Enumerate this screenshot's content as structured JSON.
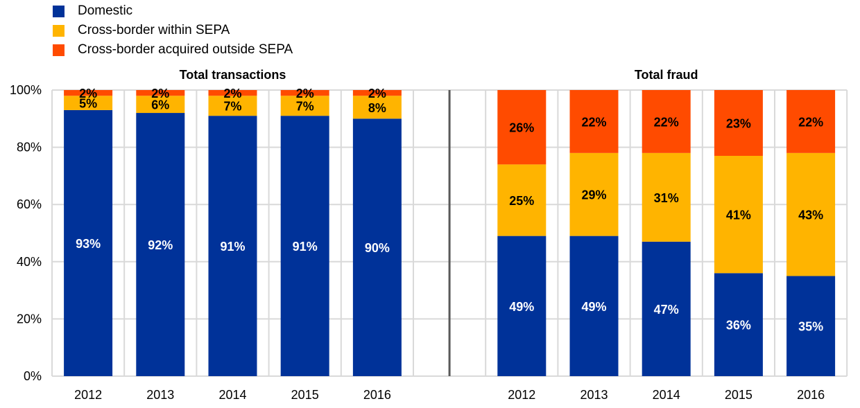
{
  "chart_data": {
    "type": "bar",
    "stacked": true,
    "percent_stacked": true,
    "legend": {
      "position": "top-left",
      "entries": [
        {
          "name": "Domestic",
          "color": "#003299"
        },
        {
          "name": "Cross-border within SEPA",
          "color": "#FFB400"
        },
        {
          "name": "Cross-border acquired outside SEPA",
          "color": "#FF4B00"
        }
      ]
    },
    "yaxis": {
      "ylim": [
        0,
        100
      ],
      "ticks": [
        "0%",
        "20%",
        "40%",
        "60%",
        "80%",
        "100%"
      ],
      "tick_values": [
        0,
        20,
        40,
        60,
        80,
        100
      ],
      "grid": true
    },
    "panels": [
      {
        "title": "Total transactions",
        "categories": [
          "2012",
          "2013",
          "2014",
          "2015",
          "2016"
        ],
        "series": [
          {
            "name": "Domestic",
            "values": [
              93,
              92,
              91,
              91,
              90
            ]
          },
          {
            "name": "Cross-border within SEPA",
            "values": [
              5,
              6,
              7,
              7,
              8
            ]
          },
          {
            "name": "Cross-border acquired outside SEPA",
            "values": [
              2,
              2,
              2,
              2,
              2
            ]
          }
        ]
      },
      {
        "title": "Total fraud",
        "categories": [
          "2012",
          "2013",
          "2014",
          "2015",
          "2016"
        ],
        "series": [
          {
            "name": "Domestic",
            "values": [
              49,
              49,
              47,
              36,
              35
            ]
          },
          {
            "name": "Cross-border within SEPA",
            "values": [
              25,
              29,
              31,
              41,
              43
            ]
          },
          {
            "name": "Cross-border acquired outside SEPA",
            "values": [
              26,
              22,
              22,
              23,
              22
            ]
          }
        ]
      }
    ],
    "label_colors": [
      "#FFFFFF",
      "#000000",
      "#000000"
    ],
    "gridline_color": "#D9D9D9",
    "separator_color": "#595959"
  }
}
